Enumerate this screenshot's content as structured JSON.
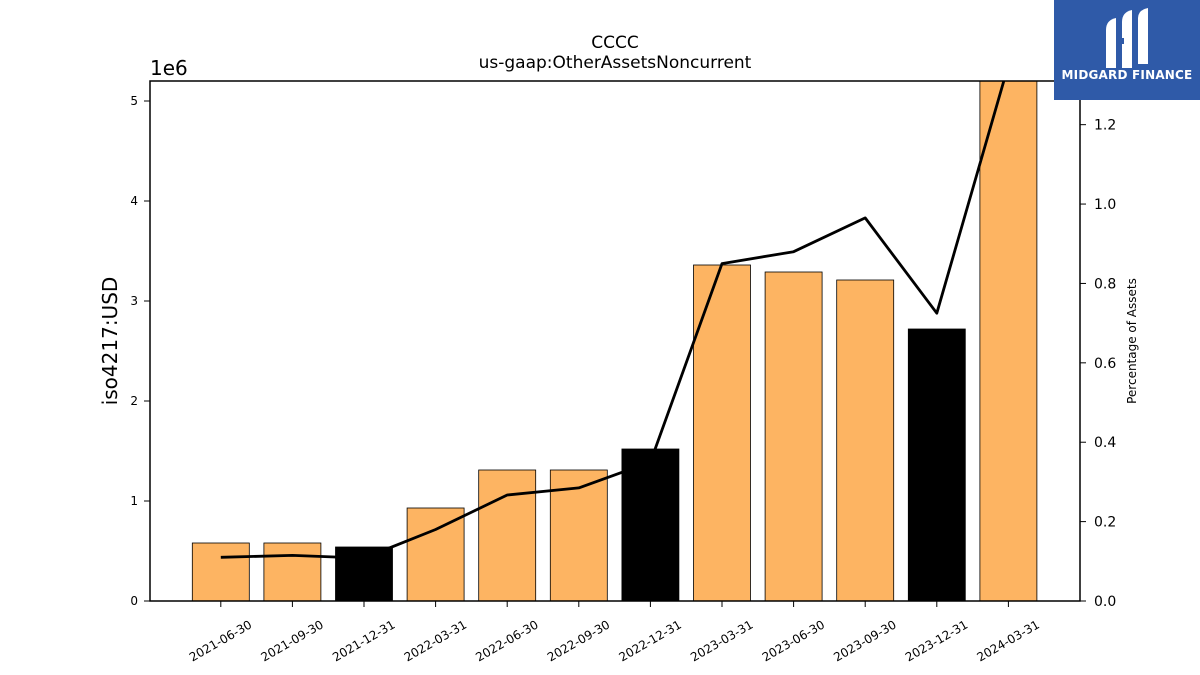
{
  "brand": {
    "name": "MIDGARD FINANCE",
    "color": "#2f5aa8",
    "icon": "midgard-logo-icon"
  },
  "chart_data": {
    "type": "bar",
    "title": "CCCC",
    "subtitle": "us-gaap:OtherAssetsNoncurrent",
    "ylabel": "iso4217:USD",
    "y_multiplier": "1e6",
    "y2label": "Percentage of Assets",
    "ylim": [
      0,
      5200000
    ],
    "y2lim": [
      0,
      1.31
    ],
    "yticks": [
      "0",
      "1",
      "2",
      "3",
      "4",
      "5"
    ],
    "y2ticks": [
      "0.0",
      "0.2",
      "0.4",
      "0.6",
      "0.8",
      "1.0",
      "1.2"
    ],
    "categories": [
      "2021-06-30",
      "2021-09-30",
      "2021-12-31",
      "2022-03-31",
      "2022-06-30",
      "2022-09-30",
      "2022-12-31",
      "2023-03-31",
      "2023-06-30",
      "2023-09-30",
      "2023-12-31",
      "2024-03-31"
    ],
    "series": [
      {
        "values": [
          580000,
          580000,
          540000,
          930000,
          1310000,
          1310000,
          1520000,
          3360000,
          3290000,
          3210000,
          2720000,
          5300000
        ]
      },
      {
        "axis": "y2",
        "values": [
          0.11,
          0.115,
          0.108,
          0.18,
          0.267,
          0.285,
          0.35,
          0.85,
          0.88,
          0.965,
          0.725,
          1.35
        ]
      }
    ],
    "bar_colors": [
      "#fdb462",
      "#fdb462",
      "#000000",
      "#fdb462",
      "#fdb462",
      "#fdb462",
      "#000000",
      "#fdb462",
      "#fdb462",
      "#fdb462",
      "#000000",
      "#fdb462"
    ],
    "line_color": "#000000",
    "grid": false,
    "legend": "none"
  }
}
